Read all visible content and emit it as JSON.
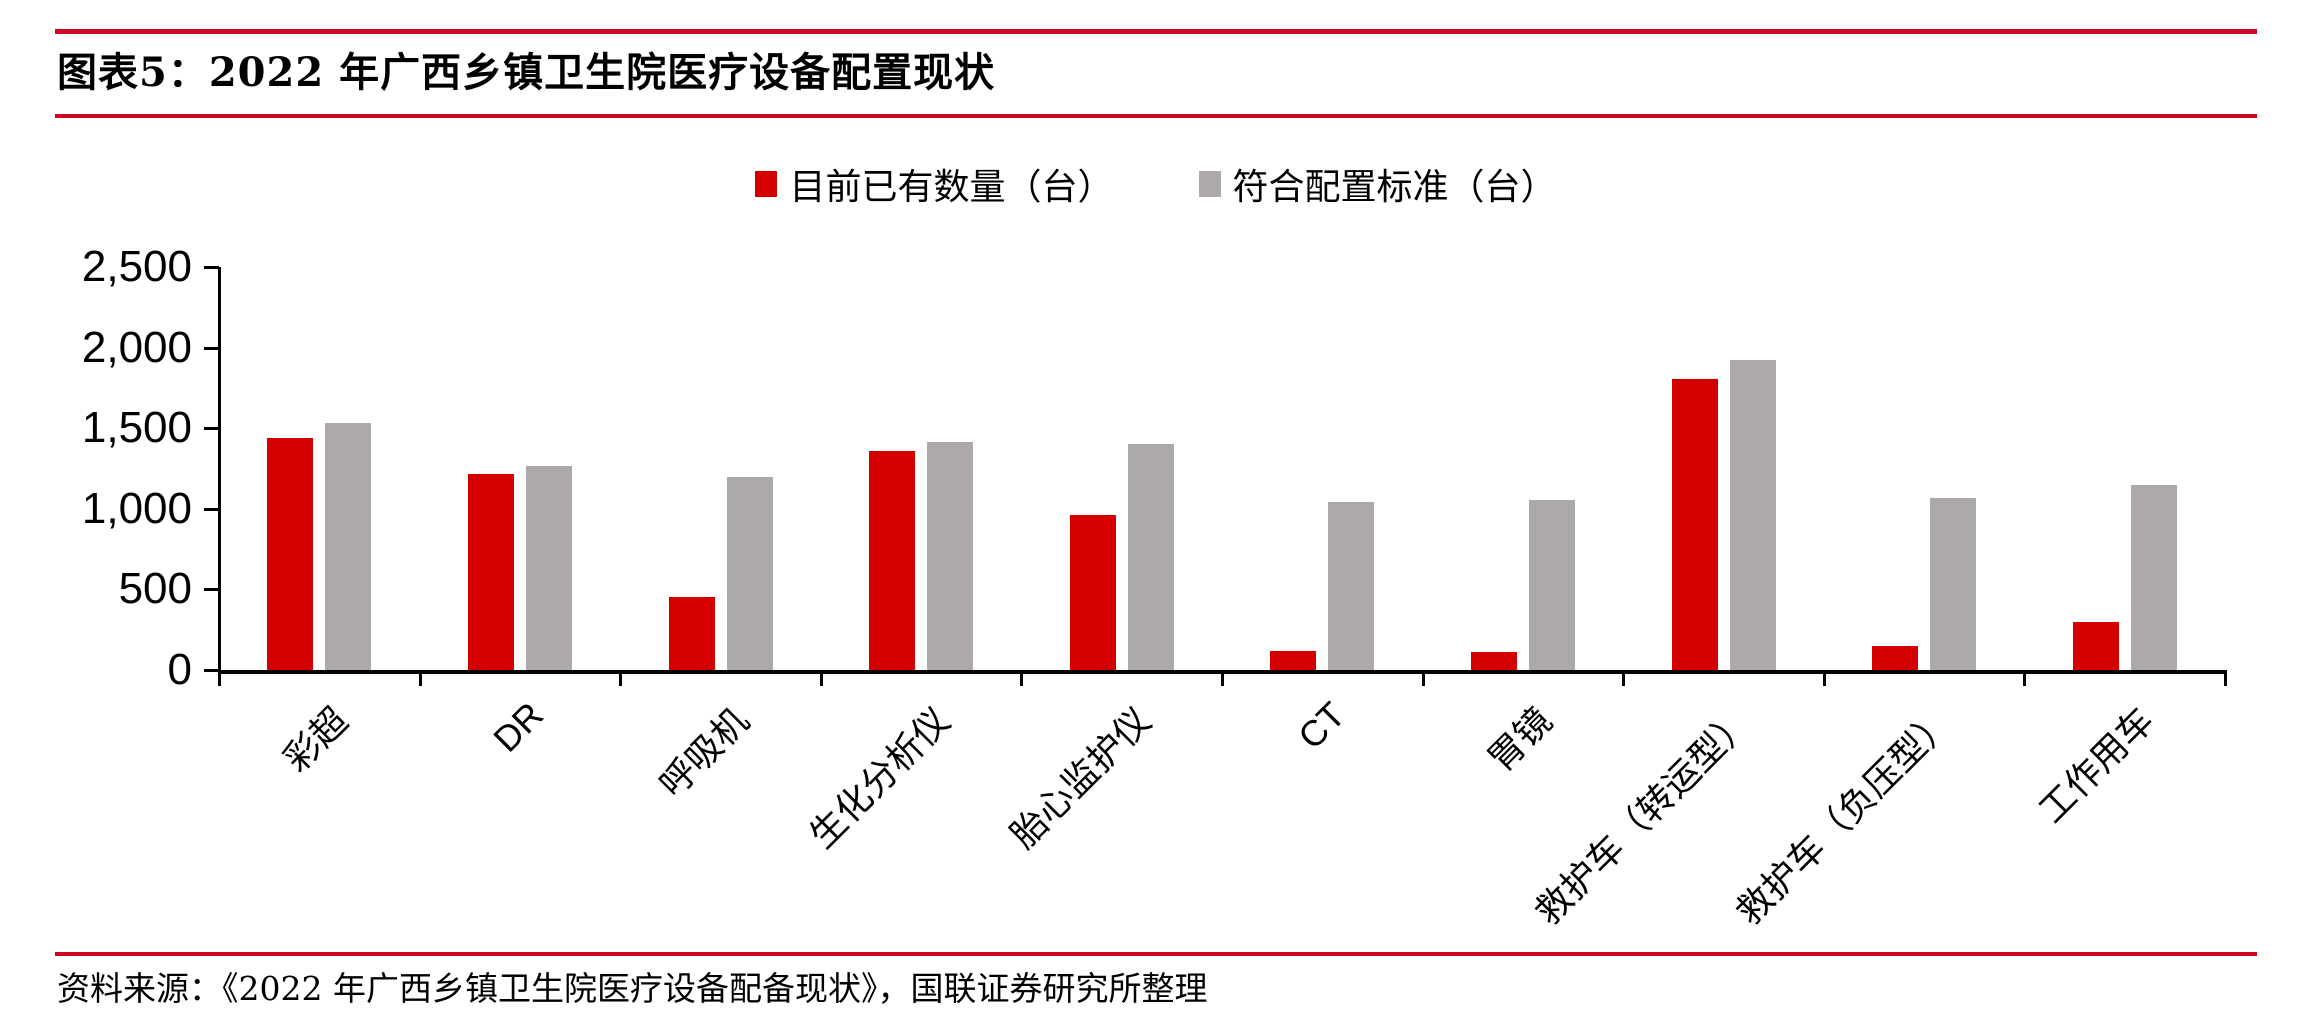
{
  "figure": {
    "title": "图表5：2022 年广西乡镇卫生院医疗设备配置现状",
    "source_note": "资料来源：《2022 年广西乡镇卫生院医疗设备配备现状》，国联证券研究所整理"
  },
  "chart_data": {
    "type": "bar",
    "title": "2022 年广西乡镇卫生院医疗设备配置现状",
    "categories": [
      "彩超",
      "DR",
      "呼吸机",
      "生化分析仪",
      "胎心监护仪",
      "CT",
      "胃镜",
      "救护车（转运型）",
      "救护车（负压型）",
      "工作用车"
    ],
    "series": [
      {
        "name": "目前已有数量（台）",
        "color": "#D40000",
        "values": [
          1440,
          1215,
          455,
          1360,
          960,
          115,
          110,
          1805,
          150,
          300
        ]
      },
      {
        "name": "符合配置标准（台）",
        "color": "#ADA9A9",
        "values": [
          1530,
          1265,
          1200,
          1415,
          1405,
          1045,
          1055,
          1925,
          1065,
          1145
        ]
      }
    ],
    "xlabel": "",
    "ylabel": "",
    "ylim": [
      0,
      2500
    ],
    "ytick_step": 500,
    "ytick_labels": [
      "0",
      "500",
      "1,000",
      "1,500",
      "2,000",
      "2,500"
    ],
    "grid": false,
    "legend_position": "top-center",
    "x_label_rotation_deg": 45
  },
  "style_colors": {
    "bar_red": "#D40000",
    "bar_gray": "#ADA9A9",
    "rule_red": "#CE0722",
    "axis_black": "#000000"
  }
}
